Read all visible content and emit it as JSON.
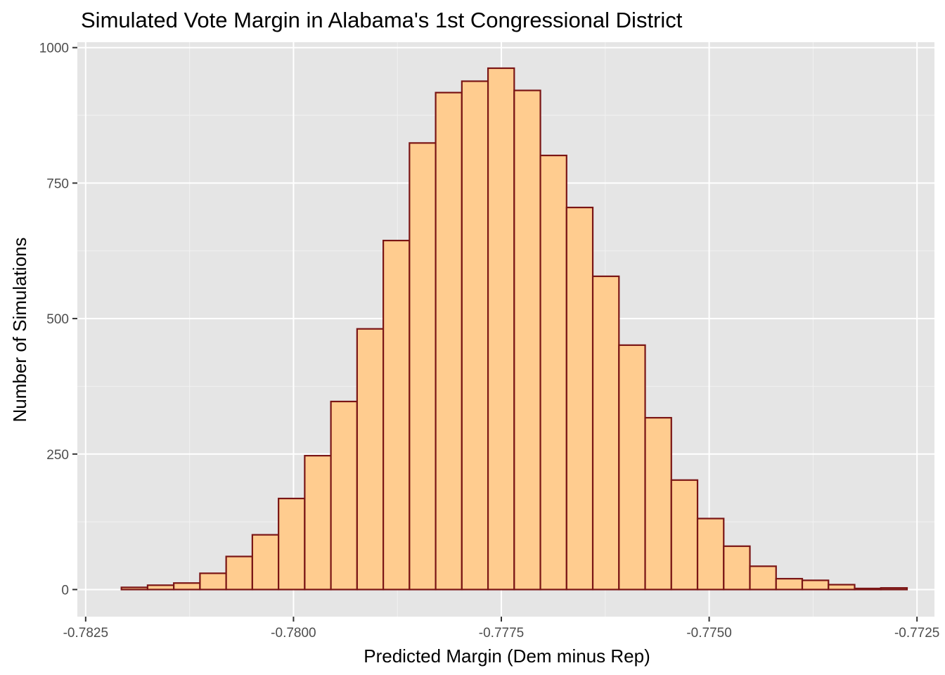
{
  "chart_data": {
    "type": "bar",
    "subtype": "histogram",
    "title": "Simulated Vote Margin in Alabama's 1st Congressional District",
    "xlabel": "Predicted Margin (Dem minus Rep)",
    "ylabel": "Number of Simulations",
    "xlim": [
      -0.7826,
      -0.77229
    ],
    "ylim": [
      -50,
      1010
    ],
    "x_ticks": [
      -0.7825,
      -0.78,
      -0.7775,
      -0.775,
      -0.7725
    ],
    "x_tick_labels": [
      "-0.7825",
      "-0.7800",
      "-0.7775",
      "-0.7750",
      "-0.7725"
    ],
    "y_ticks": [
      0,
      250,
      500,
      750,
      1000
    ],
    "y_tick_labels": [
      "0",
      "250",
      "500",
      "750",
      "1000"
    ],
    "grid": true,
    "bin_start": -0.78207,
    "bin_width": 0.000315,
    "values": [
      4,
      8,
      12,
      30,
      61,
      101,
      168,
      247,
      347,
      481,
      644,
      824,
      917,
      938,
      962,
      921,
      801,
      705,
      578,
      451,
      317,
      202,
      131,
      80,
      43,
      20,
      17,
      9,
      2,
      3
    ],
    "colors": {
      "bar_fill": "#FFCC8F",
      "bar_stroke": "#7A1515",
      "panel_background": "#E5E5E5",
      "grid_major": "#FFFFFF",
      "grid_minor": "#F2F2F2"
    }
  }
}
